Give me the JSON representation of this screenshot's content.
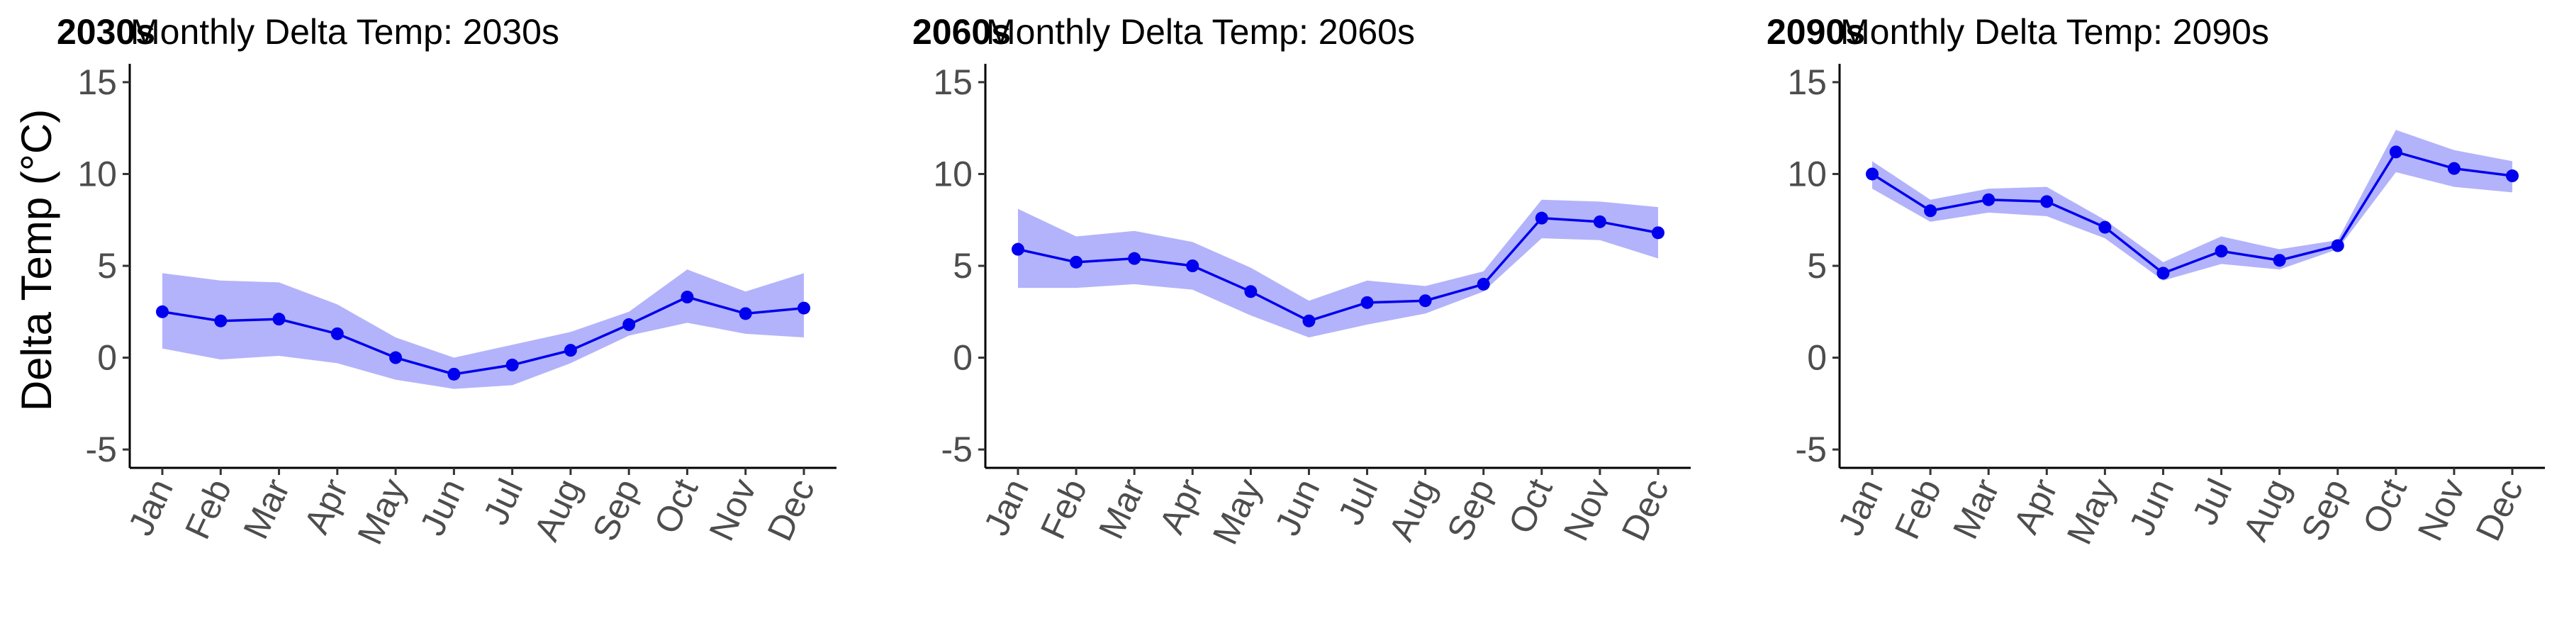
{
  "colors": {
    "line": "#0000EE",
    "band": "#B3B3FB",
    "axis": "#000000"
  },
  "chart_data": [
    {
      "type": "line",
      "tag": "2030s",
      "title": "Monthly Delta Temp: 2030s",
      "ylabel": "Delta Temp (°C)",
      "xlabel": "",
      "ylim": [
        -6,
        16
      ],
      "yticks": [
        -5,
        0,
        5,
        10,
        15
      ],
      "categories": [
        "Jan",
        "Feb",
        "Mar",
        "Apr",
        "May",
        "Jun",
        "Jul",
        "Aug",
        "Sep",
        "Oct",
        "Nov",
        "Dec"
      ],
      "values": [
        2.5,
        2.0,
        2.1,
        1.3,
        0.0,
        -0.9,
        -0.4,
        0.4,
        1.8,
        3.3,
        2.4,
        2.7
      ],
      "upper": [
        4.6,
        4.2,
        4.1,
        2.9,
        1.1,
        0.0,
        0.7,
        1.4,
        2.5,
        4.8,
        3.6,
        4.6
      ],
      "lower": [
        0.5,
        -0.1,
        0.1,
        -0.3,
        -1.2,
        -1.7,
        -1.5,
        -0.3,
        1.2,
        1.9,
        1.3,
        1.1
      ],
      "grid": false,
      "legend": "none"
    },
    {
      "type": "line",
      "tag": "2060s",
      "title": "Monthly Delta Temp: 2060s",
      "ylabel": "",
      "xlabel": "",
      "ylim": [
        -6,
        16
      ],
      "yticks": [
        -5,
        0,
        5,
        10,
        15
      ],
      "categories": [
        "Jan",
        "Feb",
        "Mar",
        "Apr",
        "May",
        "Jun",
        "Jul",
        "Aug",
        "Sep",
        "Oct",
        "Nov",
        "Dec"
      ],
      "values": [
        5.9,
        5.2,
        5.4,
        5.0,
        3.6,
        2.0,
        3.0,
        3.1,
        4.0,
        7.6,
        7.4,
        6.8
      ],
      "upper": [
        8.1,
        6.6,
        6.9,
        6.3,
        4.9,
        3.1,
        4.2,
        3.9,
        4.7,
        8.6,
        8.5,
        8.2
      ],
      "lower": [
        3.8,
        3.8,
        4.0,
        3.7,
        2.3,
        1.1,
        1.8,
        2.4,
        3.6,
        6.5,
        6.4,
        5.4
      ],
      "grid": false,
      "legend": "none"
    },
    {
      "type": "line",
      "tag": "2090s",
      "title": "Monthly Delta Temp: 2090s",
      "ylabel": "",
      "xlabel": "",
      "ylim": [
        -6,
        16
      ],
      "yticks": [
        -5,
        0,
        5,
        10,
        15
      ],
      "categories": [
        "Jan",
        "Feb",
        "Mar",
        "Apr",
        "May",
        "Jun",
        "Jul",
        "Aug",
        "Sep",
        "Oct",
        "Nov",
        "Dec"
      ],
      "values": [
        10.0,
        8.0,
        8.6,
        8.5,
        7.1,
        4.6,
        5.8,
        5.3,
        6.1,
        11.2,
        10.3,
        9.9
      ],
      "upper": [
        10.7,
        8.6,
        9.2,
        9.3,
        7.5,
        5.2,
        6.6,
        5.9,
        6.4,
        12.4,
        11.3,
        10.7
      ],
      "lower": [
        9.2,
        7.4,
        7.9,
        7.7,
        6.5,
        4.2,
        5.1,
        4.8,
        5.9,
        10.1,
        9.3,
        9.0
      ],
      "grid": false,
      "legend": "none"
    }
  ]
}
